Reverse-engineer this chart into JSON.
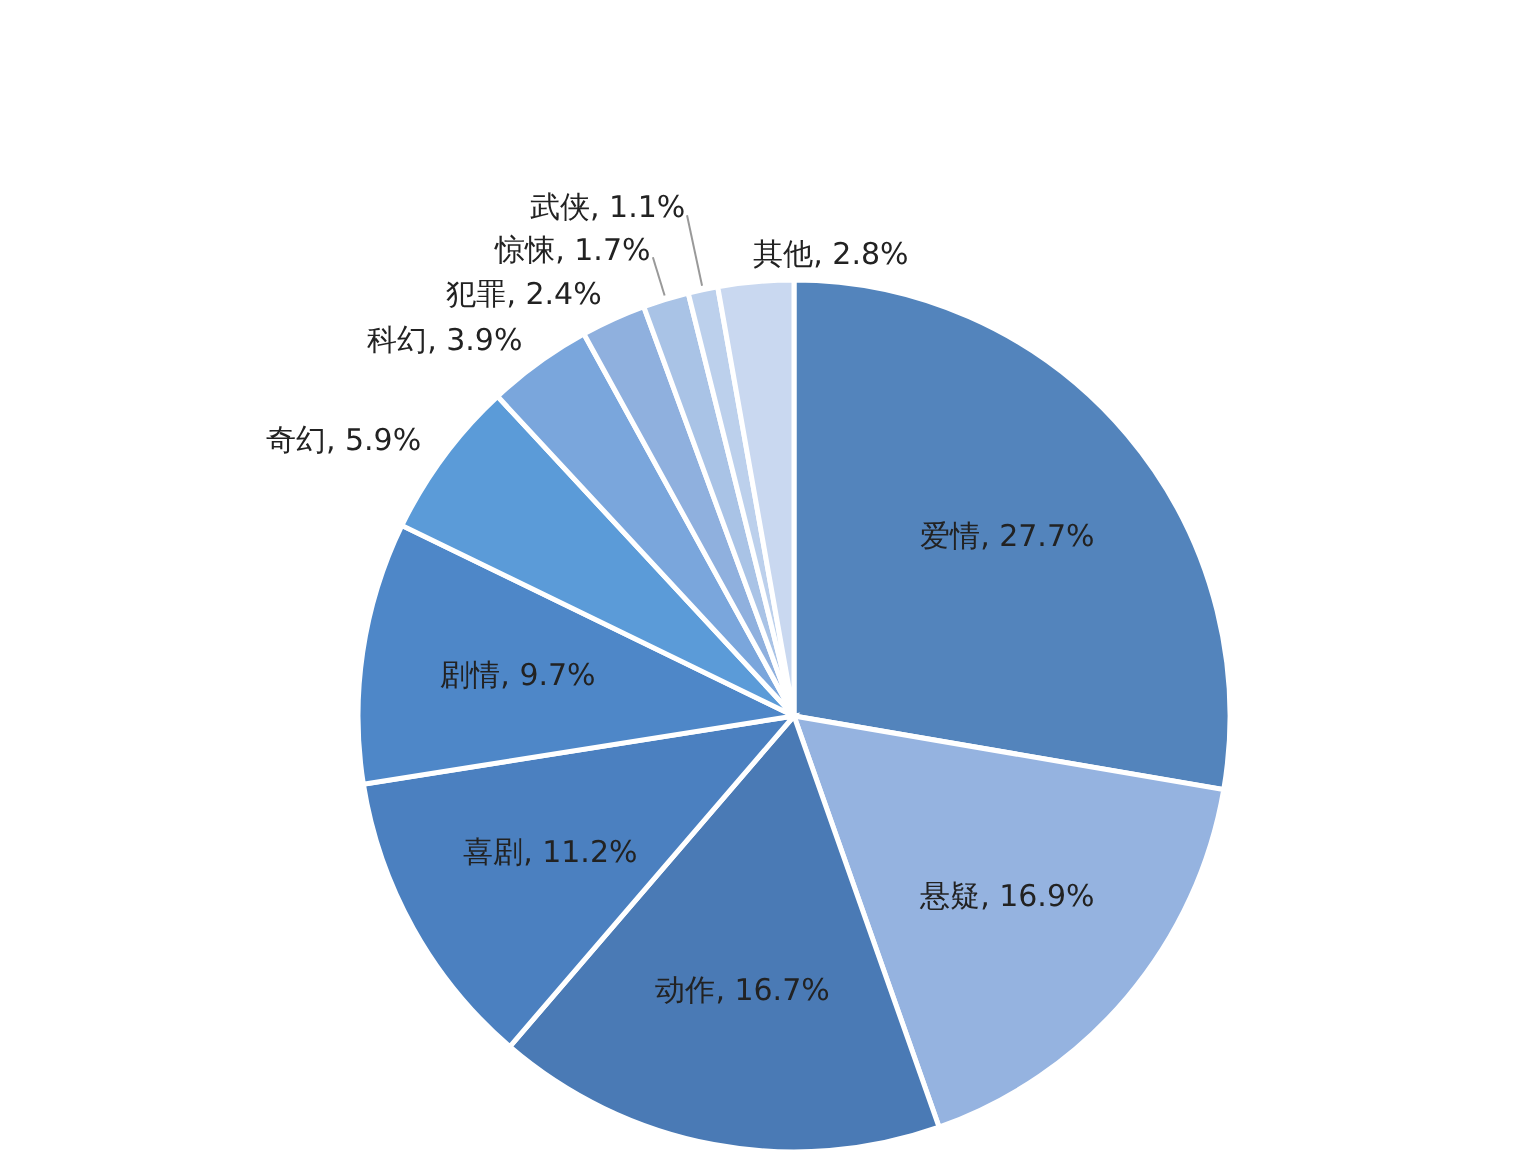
{
  "chart_data": {
    "type": "pie",
    "categories": [
      "爱情",
      "悬疑",
      "动作",
      "喜剧",
      "剧情",
      "奇幻",
      "科幻",
      "犯罪",
      "惊悚",
      "武侠",
      "其他"
    ],
    "values": [
      27.7,
      16.9,
      16.7,
      11.2,
      9.7,
      5.9,
      3.9,
      2.4,
      1.7,
      1.1,
      2.8
    ],
    "value_labels": [
      "27.7%",
      "16.9%",
      "16.7%",
      "11.2%",
      "9.7%",
      "5.9%",
      "3.9%",
      "2.4%",
      "1.7%",
      "1.1%",
      "2.8%"
    ],
    "colors": [
      "#5384bc",
      "#95b3e0",
      "#4a7ab5",
      "#4b80c0",
      "#4e87c8",
      "#5b9bd8",
      "#7aa6dc",
      "#8fb0de",
      "#a9c3e6",
      "#bcd0ec",
      "#c9d8f0"
    ],
    "grid": false
  }
}
